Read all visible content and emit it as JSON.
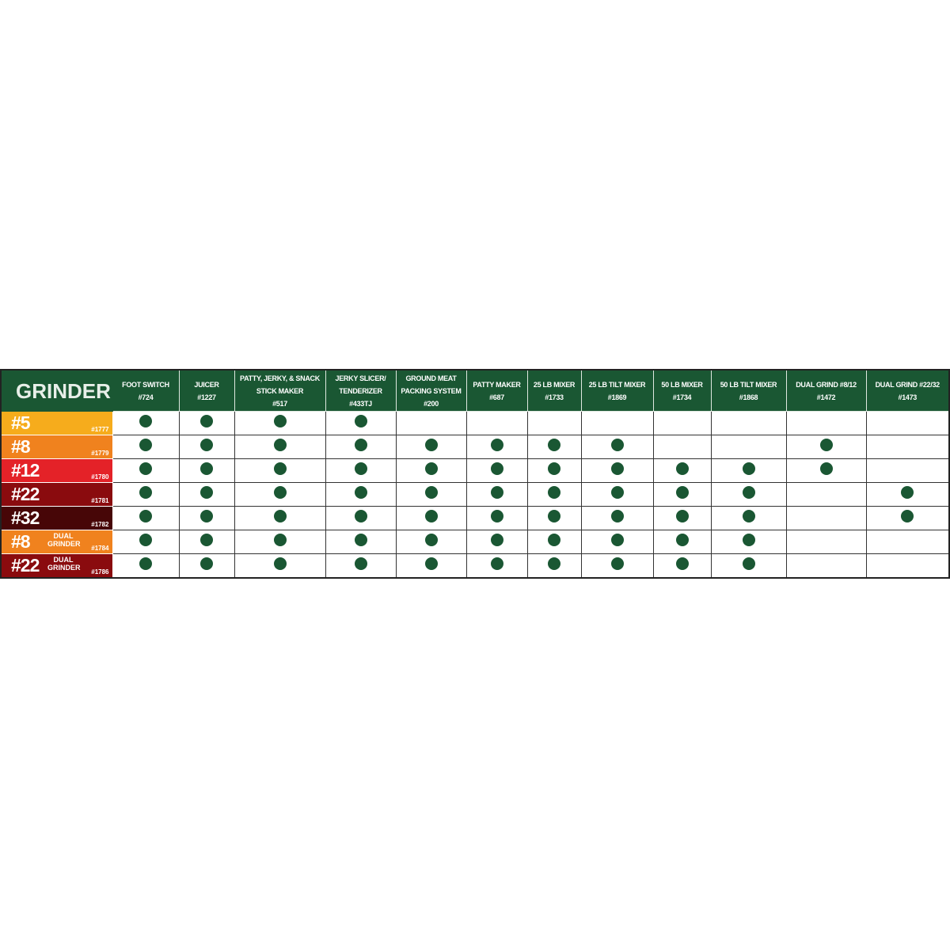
{
  "chart_data": {
    "type": "table",
    "corner_label": "GRINDER",
    "columns": [
      {
        "name": "FOOT SWITCH",
        "code": "#724"
      },
      {
        "name": "JUICER",
        "code": "#1227"
      },
      {
        "name": "PATTY, JERKY, & SNACK STICK MAKER",
        "code": "#517"
      },
      {
        "name": "JERKY SLICER/ TENDERIZER",
        "code": "#433TJ"
      },
      {
        "name": "GROUND MEAT PACKING SYSTEM",
        "code": "#200"
      },
      {
        "name": "PATTY MAKER",
        "code": "#687"
      },
      {
        "name": "25 LB MIXER",
        "code": "#1733"
      },
      {
        "name": "25 LB TILT MIXER",
        "code": "#1869"
      },
      {
        "name": "50 LB MIXER",
        "code": "#1734"
      },
      {
        "name": "50 LB TILT MIXER",
        "code": "#1868"
      },
      {
        "name": "DUAL GRIND #8/12",
        "code": "#1472"
      },
      {
        "name": "DUAL GRIND #22/32",
        "code": "#1473"
      }
    ],
    "rows": [
      {
        "label": "#5",
        "sub": "",
        "code": "#1777",
        "color": "#f6ac1c",
        "compatible": [
          1,
          1,
          1,
          1,
          0,
          0,
          0,
          0,
          0,
          0,
          0,
          0
        ]
      },
      {
        "label": "#8",
        "sub": "",
        "code": "#1779",
        "color": "#f0821e",
        "compatible": [
          1,
          1,
          1,
          1,
          1,
          1,
          1,
          1,
          0,
          0,
          1,
          0
        ]
      },
      {
        "label": "#12",
        "sub": "",
        "code": "#1780",
        "color": "#e42228",
        "compatible": [
          1,
          1,
          1,
          1,
          1,
          1,
          1,
          1,
          1,
          1,
          1,
          0
        ]
      },
      {
        "label": "#22",
        "sub": "",
        "code": "#1781",
        "color": "#8a0b0e",
        "compatible": [
          1,
          1,
          1,
          1,
          1,
          1,
          1,
          1,
          1,
          1,
          0,
          1
        ]
      },
      {
        "label": "#32",
        "sub": "",
        "code": "#1782",
        "color": "#470607",
        "compatible": [
          1,
          1,
          1,
          1,
          1,
          1,
          1,
          1,
          1,
          1,
          0,
          1
        ]
      },
      {
        "label": "#8",
        "sub": "DUAL GRINDER",
        "code": "#1784",
        "color": "#f0821e",
        "compatible": [
          1,
          1,
          1,
          1,
          1,
          1,
          1,
          1,
          1,
          1,
          0,
          0
        ]
      },
      {
        "label": "#22",
        "sub": "DUAL GRINDER",
        "code": "#1786",
        "color": "#8a0b0e",
        "compatible": [
          1,
          1,
          1,
          1,
          1,
          1,
          1,
          1,
          1,
          1,
          0,
          0
        ]
      }
    ],
    "colors": {
      "header": "#1a5733",
      "dot": "#1a5733"
    }
  }
}
